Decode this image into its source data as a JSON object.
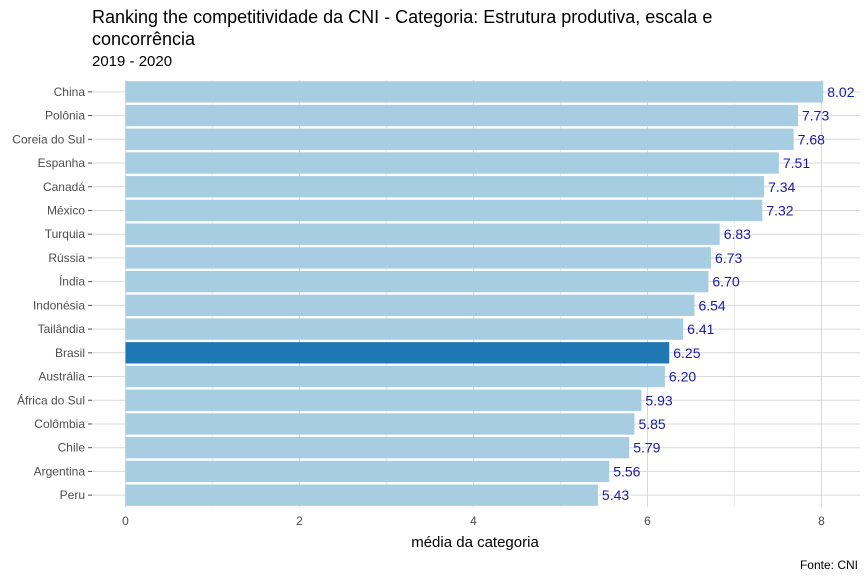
{
  "chart_data": {
    "type": "bar",
    "orientation": "horizontal",
    "title": "Ranking the competitividade da CNI - Categoria: Estrutura produtiva, escala e concorrência",
    "subtitle": "2019 - 2020",
    "xlabel": "média da categoria",
    "ylabel": "",
    "caption": "Fonte: CNI",
    "xlim": [
      0,
      8.3
    ],
    "xticks": [
      "0",
      "2",
      "4",
      "6",
      "8"
    ],
    "grid": true,
    "highlight": "Brasil",
    "colors": {
      "bar": "#a6cde2",
      "highlight": "#1f78b4",
      "label": "#1a1aa6",
      "grid": "#d9d9d9"
    },
    "categories": [
      "China",
      "Polônia",
      "Coreia do Sul",
      "Espanha",
      "Canadá",
      "México",
      "Turquia",
      "Rússia",
      "Índia",
      "Indonésia",
      "Tailândia",
      "Brasil",
      "Austrália",
      "África do Sul",
      "Colômbia",
      "Chile",
      "Argentina",
      "Peru"
    ],
    "values": [
      8.02,
      7.73,
      7.68,
      7.51,
      7.34,
      7.32,
      6.83,
      6.73,
      6.7,
      6.54,
      6.41,
      6.25,
      6.2,
      5.93,
      5.85,
      5.79,
      5.56,
      5.43
    ],
    "value_labels": [
      "8.02",
      "7.73",
      "7.68",
      "7.51",
      "7.34",
      "7.32",
      "6.83",
      "6.73",
      "6.70",
      "6.54",
      "6.41",
      "6.25",
      "6.20",
      "5.93",
      "5.85",
      "5.79",
      "5.56",
      "5.43"
    ]
  }
}
